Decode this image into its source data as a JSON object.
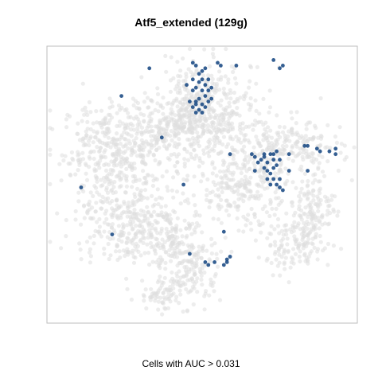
{
  "chart_data": {
    "type": "scatter",
    "title": "Atf5_extended (129g)",
    "xlabel": "Cells with AUC > 0.031",
    "ylabel": "",
    "grid": false,
    "legend": "none",
    "colors": {
      "background_cells": "#dedede",
      "highlight_cells": "#1f4e86",
      "plot_border": "#bdbdbd"
    },
    "background_blobs": [
      {
        "cx": 0.22,
        "cy": 0.62,
        "rx": 0.17,
        "ry": 0.18,
        "n": 420
      },
      {
        "cx": 0.38,
        "cy": 0.7,
        "rx": 0.12,
        "ry": 0.1,
        "n": 160
      },
      {
        "cx": 0.46,
        "cy": 0.76,
        "rx": 0.08,
        "ry": 0.14,
        "n": 170
      },
      {
        "cx": 0.55,
        "cy": 0.75,
        "rx": 0.16,
        "ry": 0.2,
        "n": 330
      },
      {
        "cx": 0.63,
        "cy": 0.49,
        "rx": 0.14,
        "ry": 0.13,
        "n": 230
      },
      {
        "cx": 0.78,
        "cy": 0.63,
        "rx": 0.17,
        "ry": 0.11,
        "n": 230
      },
      {
        "cx": 0.86,
        "cy": 0.42,
        "rx": 0.07,
        "ry": 0.11,
        "n": 120
      },
      {
        "cx": 0.8,
        "cy": 0.28,
        "rx": 0.12,
        "ry": 0.09,
        "n": 140
      },
      {
        "cx": 0.25,
        "cy": 0.36,
        "rx": 0.16,
        "ry": 0.14,
        "n": 290
      },
      {
        "cx": 0.41,
        "cy": 0.31,
        "rx": 0.07,
        "ry": 0.14,
        "n": 130
      },
      {
        "cx": 0.47,
        "cy": 0.2,
        "rx": 0.09,
        "ry": 0.13,
        "n": 130
      },
      {
        "cx": 0.38,
        "cy": 0.11,
        "rx": 0.08,
        "ry": 0.07,
        "n": 80
      }
    ],
    "highlight_points": [
      [
        0.48,
        0.93
      ],
      [
        0.49,
        0.9
      ],
      [
        0.49,
        0.87
      ],
      [
        0.5,
        0.91
      ],
      [
        0.5,
        0.88
      ],
      [
        0.47,
        0.88
      ],
      [
        0.48,
        0.85
      ],
      [
        0.5,
        0.84
      ],
      [
        0.51,
        0.86
      ],
      [
        0.51,
        0.82
      ],
      [
        0.49,
        0.81
      ],
      [
        0.48,
        0.79
      ],
      [
        0.5,
        0.79
      ],
      [
        0.51,
        0.78
      ],
      [
        0.49,
        0.77
      ],
      [
        0.48,
        0.8
      ],
      [
        0.52,
        0.84
      ],
      [
        0.52,
        0.8
      ],
      [
        0.53,
        0.85
      ],
      [
        0.52,
        0.88
      ],
      [
        0.47,
        0.84
      ],
      [
        0.46,
        0.8
      ],
      [
        0.47,
        0.78
      ],
      [
        0.5,
        0.76
      ],
      [
        0.48,
        0.76
      ],
      [
        0.51,
        0.92
      ],
      [
        0.45,
        0.86
      ],
      [
        0.53,
        0.81
      ],
      [
        0.55,
        0.94
      ],
      [
        0.56,
        0.93
      ],
      [
        0.61,
        0.93
      ],
      [
        0.47,
        0.94
      ],
      [
        0.33,
        0.92
      ],
      [
        0.24,
        0.82
      ],
      [
        0.73,
        0.95
      ],
      [
        0.75,
        0.92
      ],
      [
        0.76,
        0.93
      ],
      [
        0.67,
        0.6
      ],
      [
        0.68,
        0.58
      ],
      [
        0.69,
        0.59
      ],
      [
        0.7,
        0.61
      ],
      [
        0.71,
        0.58
      ],
      [
        0.72,
        0.61
      ],
      [
        0.7,
        0.56
      ],
      [
        0.71,
        0.55
      ],
      [
        0.72,
        0.54
      ],
      [
        0.73,
        0.56
      ],
      [
        0.73,
        0.59
      ],
      [
        0.74,
        0.57
      ],
      [
        0.74,
        0.62
      ],
      [
        0.75,
        0.59
      ],
      [
        0.71,
        0.52
      ],
      [
        0.72,
        0.5
      ],
      [
        0.73,
        0.52
      ],
      [
        0.74,
        0.5
      ],
      [
        0.75,
        0.52
      ],
      [
        0.75,
        0.49
      ],
      [
        0.76,
        0.48
      ],
      [
        0.7,
        0.6
      ],
      [
        0.73,
        0.61
      ],
      [
        0.78,
        0.61
      ],
      [
        0.78,
        0.55
      ],
      [
        0.67,
        0.55
      ],
      [
        0.83,
        0.64
      ],
      [
        0.84,
        0.64
      ],
      [
        0.87,
        0.63
      ],
      [
        0.88,
        0.62
      ],
      [
        0.91,
        0.62
      ],
      [
        0.93,
        0.63
      ],
      [
        0.93,
        0.61
      ],
      [
        0.84,
        0.55
      ],
      [
        0.66,
        0.61
      ],
      [
        0.37,
        0.67
      ],
      [
        0.59,
        0.61
      ],
      [
        0.44,
        0.5
      ],
      [
        0.11,
        0.49
      ],
      [
        0.21,
        0.32
      ],
      [
        0.57,
        0.33
      ],
      [
        0.46,
        0.25
      ],
      [
        0.51,
        0.22
      ],
      [
        0.52,
        0.21
      ],
      [
        0.54,
        0.22
      ],
      [
        0.58,
        0.23
      ],
      [
        0.59,
        0.24
      ],
      [
        0.58,
        0.22
      ],
      [
        0.57,
        0.21
      ]
    ]
  }
}
